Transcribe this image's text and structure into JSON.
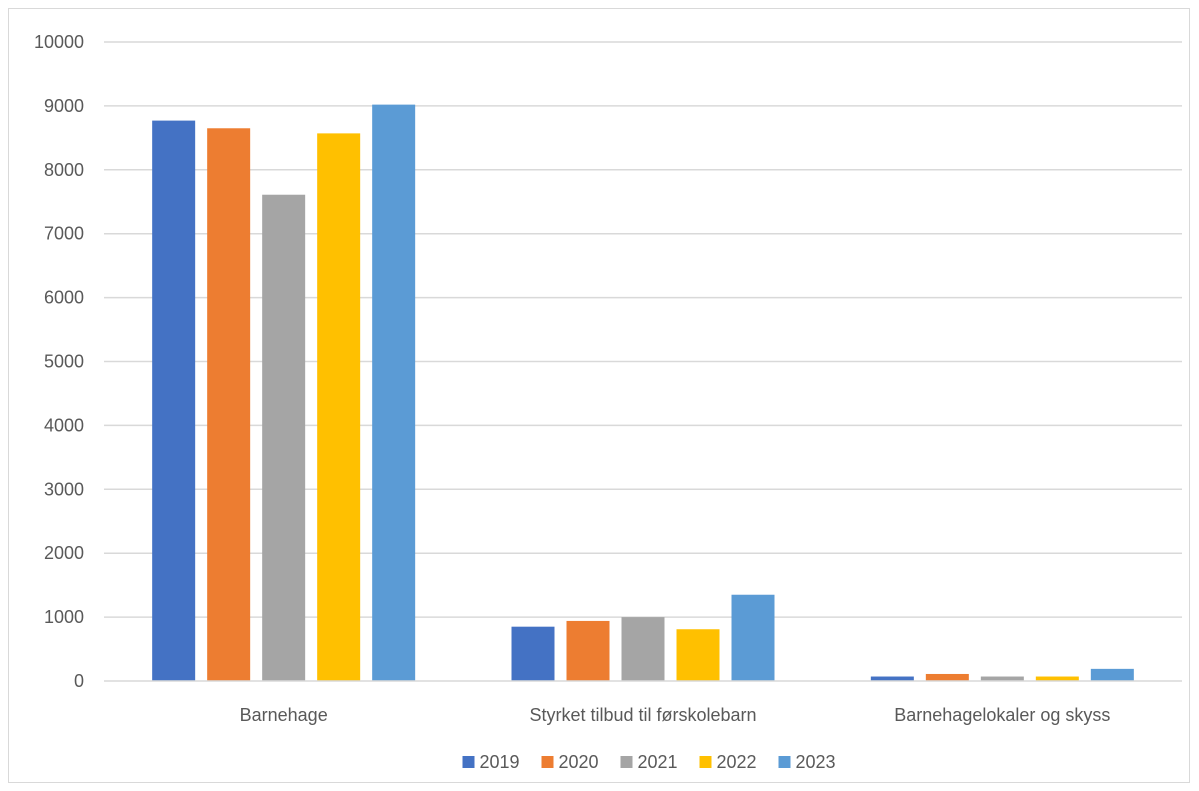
{
  "chart_data": {
    "type": "bar",
    "categories": [
      "Barnehage",
      "Styrket tilbud til førskolebarn",
      "Barnehagelokaler og skyss"
    ],
    "series": [
      {
        "name": "2019",
        "color": "#4472C4",
        "values": [
          8770,
          850,
          70
        ]
      },
      {
        "name": "2020",
        "color": "#ED7D31",
        "values": [
          8650,
          940,
          110
        ]
      },
      {
        "name": "2021",
        "color": "#A5A5A5",
        "values": [
          7610,
          1000,
          70
        ]
      },
      {
        "name": "2022",
        "color": "#FFC000",
        "values": [
          8570,
          810,
          70
        ]
      },
      {
        "name": "2023",
        "color": "#5B9BD5",
        "values": [
          9020,
          1350,
          190
        ]
      }
    ],
    "title": "",
    "xlabel": "",
    "ylabel": "",
    "ylim": [
      0,
      10000
    ],
    "yticks": [
      "0",
      "1000",
      "2000",
      "3000",
      "4000",
      "5000",
      "6000",
      "7000",
      "8000",
      "9000",
      "10000"
    ],
    "grid": true,
    "legend_position": "bottom",
    "colors": {
      "gridline": "#d9d9d9",
      "axis": "#d9d9d9",
      "text": "#595959"
    }
  }
}
